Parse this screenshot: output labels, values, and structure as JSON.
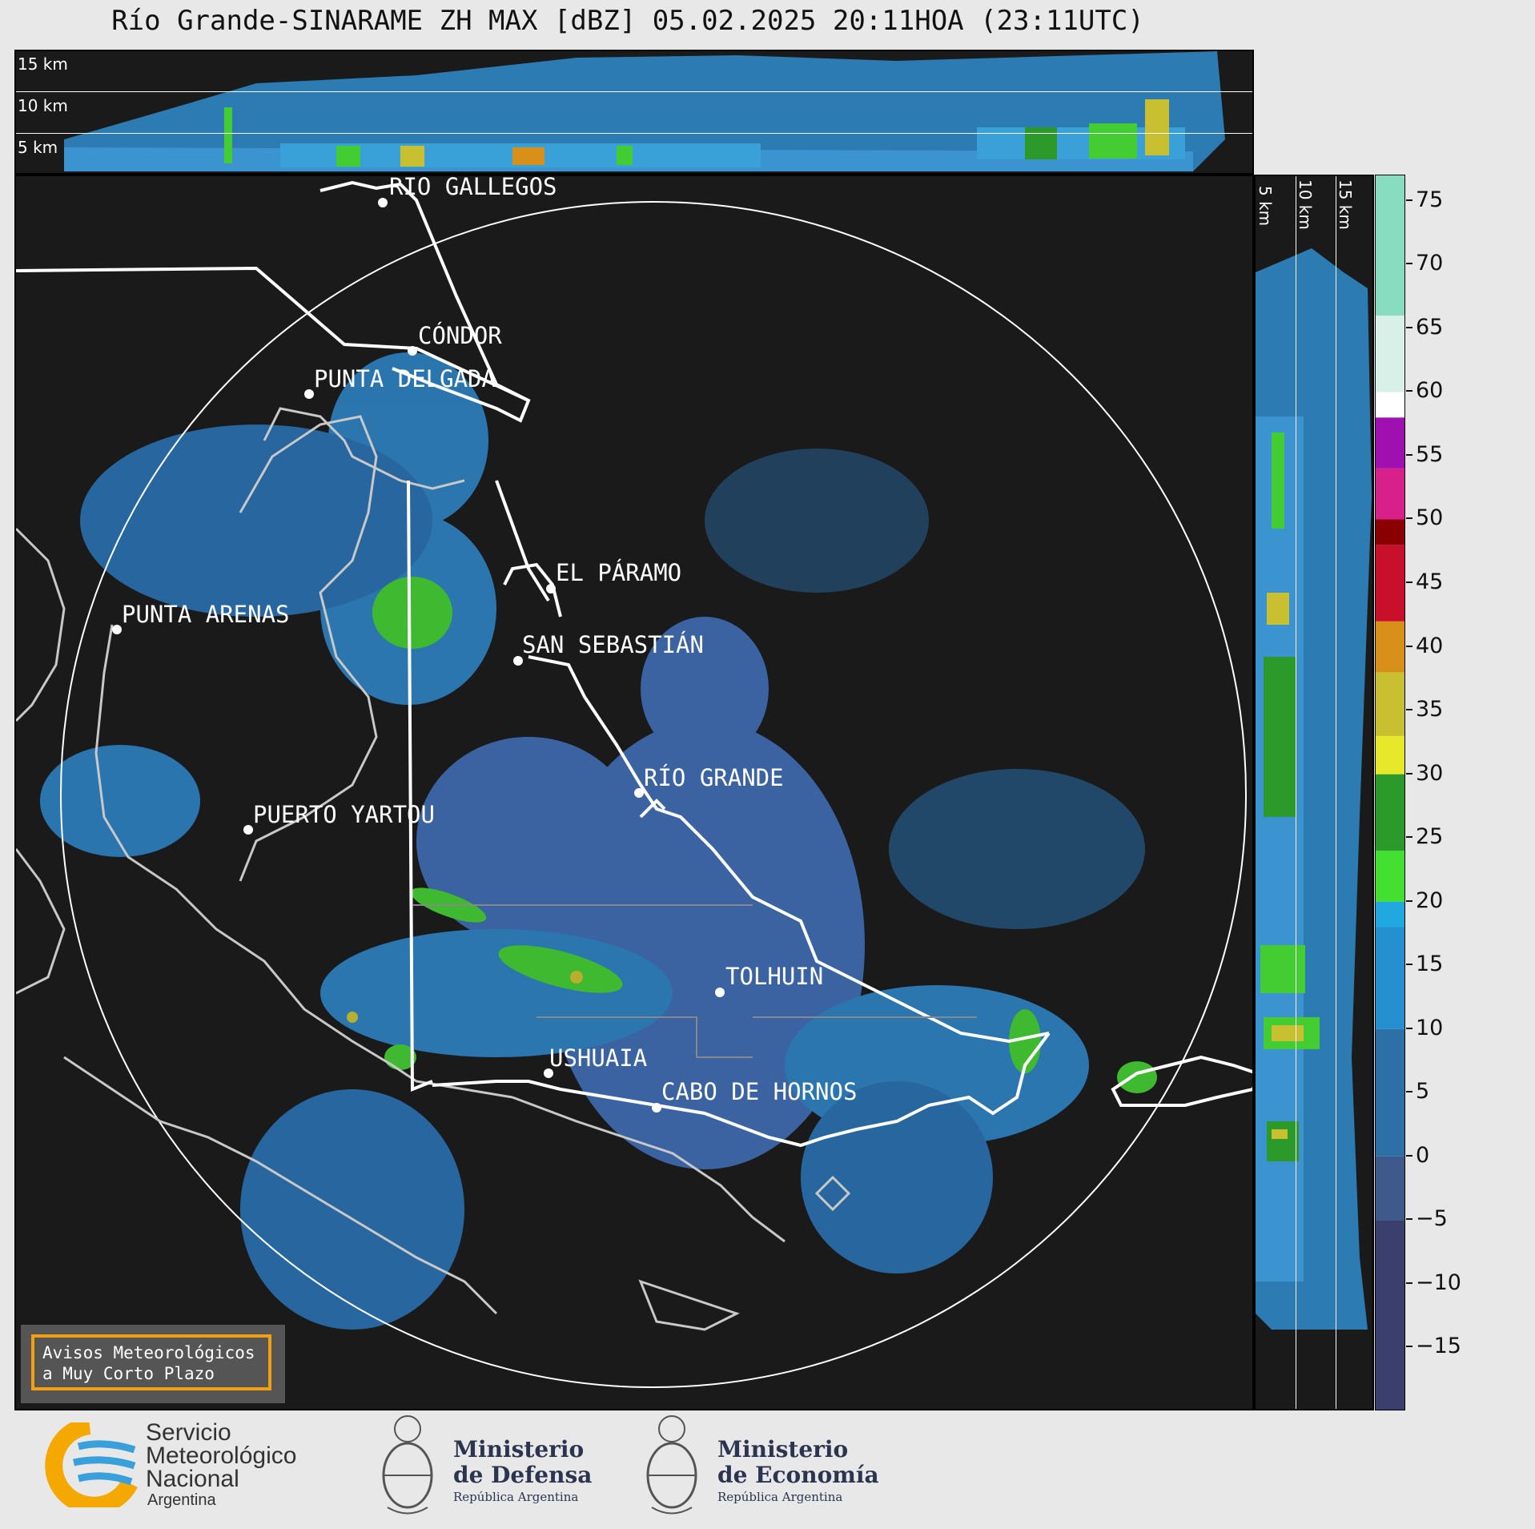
{
  "title": "Río Grande-SINARAME ZH MAX [dBZ] 05.02.2025 20:11HOA (23:11UTC)",
  "top_panel": {
    "km_labels": [
      "15 km",
      "10 km",
      "5 km"
    ]
  },
  "side_panel": {
    "km_labels": [
      "5 km",
      "10 km",
      "15 km"
    ]
  },
  "cities": [
    {
      "name": "RÍO GALLEGOS"
    },
    {
      "name": "CÓNDOR"
    },
    {
      "name": "PUNTA DELGADA"
    },
    {
      "name": "EL PÁRAMO"
    },
    {
      "name": "PUNTA ARENAS"
    },
    {
      "name": "SAN SEBASTIÁN"
    },
    {
      "name": "RÍO GRANDE"
    },
    {
      "name": "PUERTO YARTOU"
    },
    {
      "name": "TOLHUIN"
    },
    {
      "name": "USHUAIA"
    },
    {
      "name": "CABO DE HORNOS"
    }
  ],
  "colorbar": {
    "unit": "dBZ",
    "ticks": [
      "75",
      "70",
      "65",
      "60",
      "55",
      "50",
      "45",
      "40",
      "35",
      "30",
      "25",
      "20",
      "15",
      "10",
      "5",
      "0",
      "−5",
      "−10",
      "−15"
    ],
    "tick_values": [
      75,
      70,
      65,
      60,
      55,
      50,
      45,
      40,
      35,
      30,
      25,
      20,
      15,
      10,
      5,
      0,
      -5,
      -10,
      -15
    ],
    "range": [
      -20,
      77
    ],
    "color_stops": [
      {
        "from": -20,
        "to": -5,
        "color": "#3a3f6e"
      },
      {
        "from": -5,
        "to": 0,
        "color": "#3d5a8a"
      },
      {
        "from": 0,
        "to": 10,
        "color": "#2d70a8"
      },
      {
        "from": 10,
        "to": 18,
        "color": "#2590cf"
      },
      {
        "from": 18,
        "to": 20,
        "color": "#21a8e0"
      },
      {
        "from": 20,
        "to": 24,
        "color": "#44e031"
      },
      {
        "from": 24,
        "to": 30,
        "color": "#2c9a2a"
      },
      {
        "from": 30,
        "to": 33,
        "color": "#e8e82a"
      },
      {
        "from": 33,
        "to": 38,
        "color": "#c8c030"
      },
      {
        "from": 38,
        "to": 42,
        "color": "#d89018"
      },
      {
        "from": 42,
        "to": 48,
        "color": "#c8102a"
      },
      {
        "from": 48,
        "to": 50,
        "color": "#8a0000"
      },
      {
        "from": 50,
        "to": 54,
        "color": "#d8208a"
      },
      {
        "from": 54,
        "to": 58,
        "color": "#a010b0"
      },
      {
        "from": 58,
        "to": 60,
        "color": "#ffffff"
      },
      {
        "from": 60,
        "to": 66,
        "color": "#d8f0e8"
      },
      {
        "from": 66,
        "to": 77,
        "color": "#88dcc0"
      }
    ]
  },
  "notice": {
    "line1": "Avisos Meteorológicos",
    "line2": "a Muy Corto Plazo"
  },
  "logos": {
    "smn": {
      "line1": "Servicio",
      "line2": "Meteorológico",
      "line3": "Nacional",
      "line4": "Argentina"
    },
    "defensa": {
      "line1": "Ministerio",
      "line2": "de Defensa",
      "line3": "República Argentina"
    },
    "economia": {
      "line1": "Ministerio",
      "line2": "de Economía",
      "line3": "República Argentina"
    }
  },
  "colors": {
    "background": "#1a1a1a",
    "echo_blue": "#2d80c0",
    "echo_green": "#44cc33",
    "accent_orange": "#f2a00f",
    "smn_orange": "#f5a800",
    "smn_blue": "#3aa0dc"
  }
}
